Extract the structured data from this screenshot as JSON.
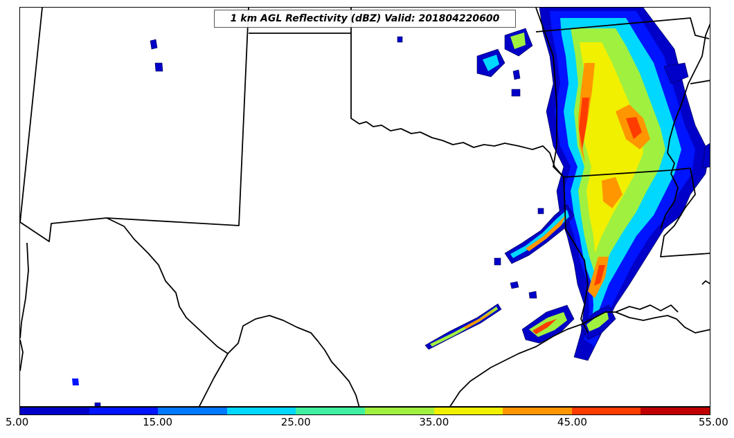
{
  "title": "1 km AGL Reflectivity (dBZ) Valid: 201804220600",
  "colorbar": {
    "colors": [
      "#0000c8",
      "#0014ff",
      "#0078ff",
      "#00d8ff",
      "#40f0a0",
      "#a0f040",
      "#f0f000",
      "#ff9600",
      "#ff3c00",
      "#c00000"
    ],
    "ticks": [
      "5.00",
      "15.00",
      "25.00",
      "35.00",
      "45.00",
      "55.00"
    ]
  },
  "palette": {
    "c5": "#0000c8",
    "c10": "#0014ff",
    "c15": "#0078ff",
    "c20": "#00d8ff",
    "c25": "#40f0a0",
    "c30": "#a0f040",
    "c35": "#f0f000",
    "c40": "#ff9600",
    "c45": "#ff3c00",
    "c50": "#c00000"
  }
}
